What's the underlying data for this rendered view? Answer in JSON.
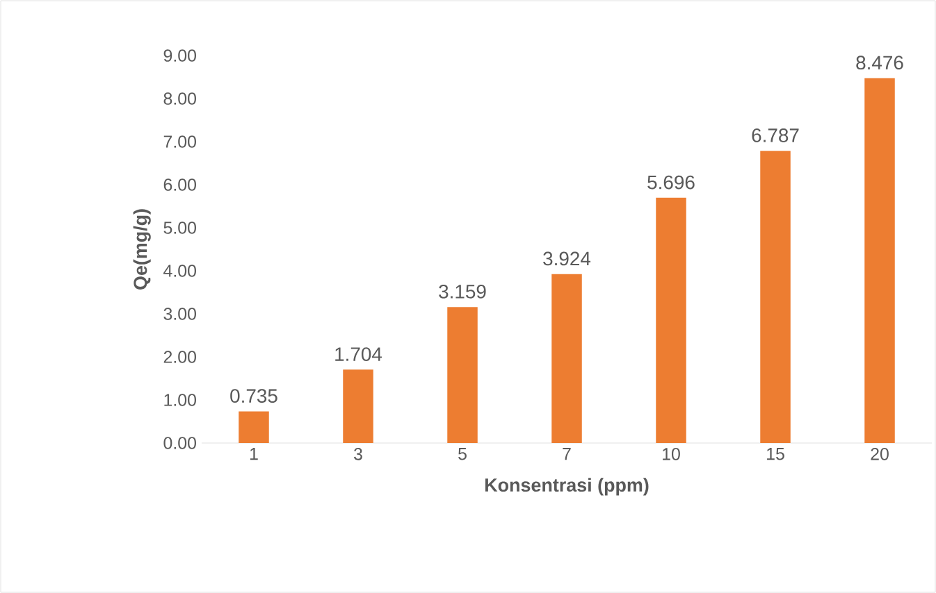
{
  "chart_data": {
    "type": "bar",
    "xlabel": "Konsentrasi (ppm)",
    "ylabel": "Qe(mg/g)",
    "categories": [
      "1",
      "3",
      "5",
      "7",
      "10",
      "15",
      "20"
    ],
    "values": [
      0.735,
      1.704,
      3.159,
      3.924,
      5.696,
      6.787,
      8.476
    ],
    "value_labels": [
      "0.735",
      "1.704",
      "3.159",
      "3.924",
      "5.696",
      "6.787",
      "8.476"
    ],
    "color": "#ed7d31",
    "ylim": [
      0,
      9
    ],
    "yticks": [
      {
        "value": 0,
        "label": "0.00"
      },
      {
        "value": 1,
        "label": "1.00"
      },
      {
        "value": 2,
        "label": "2.00"
      },
      {
        "value": 3,
        "label": "3.00"
      },
      {
        "value": 4,
        "label": "4.00"
      },
      {
        "value": 5,
        "label": "5.00"
      },
      {
        "value": 6,
        "label": "6.00"
      },
      {
        "value": 7,
        "label": "7.00"
      },
      {
        "value": 8,
        "label": "8.00"
      },
      {
        "value": 9,
        "label": "9.00"
      }
    ]
  }
}
